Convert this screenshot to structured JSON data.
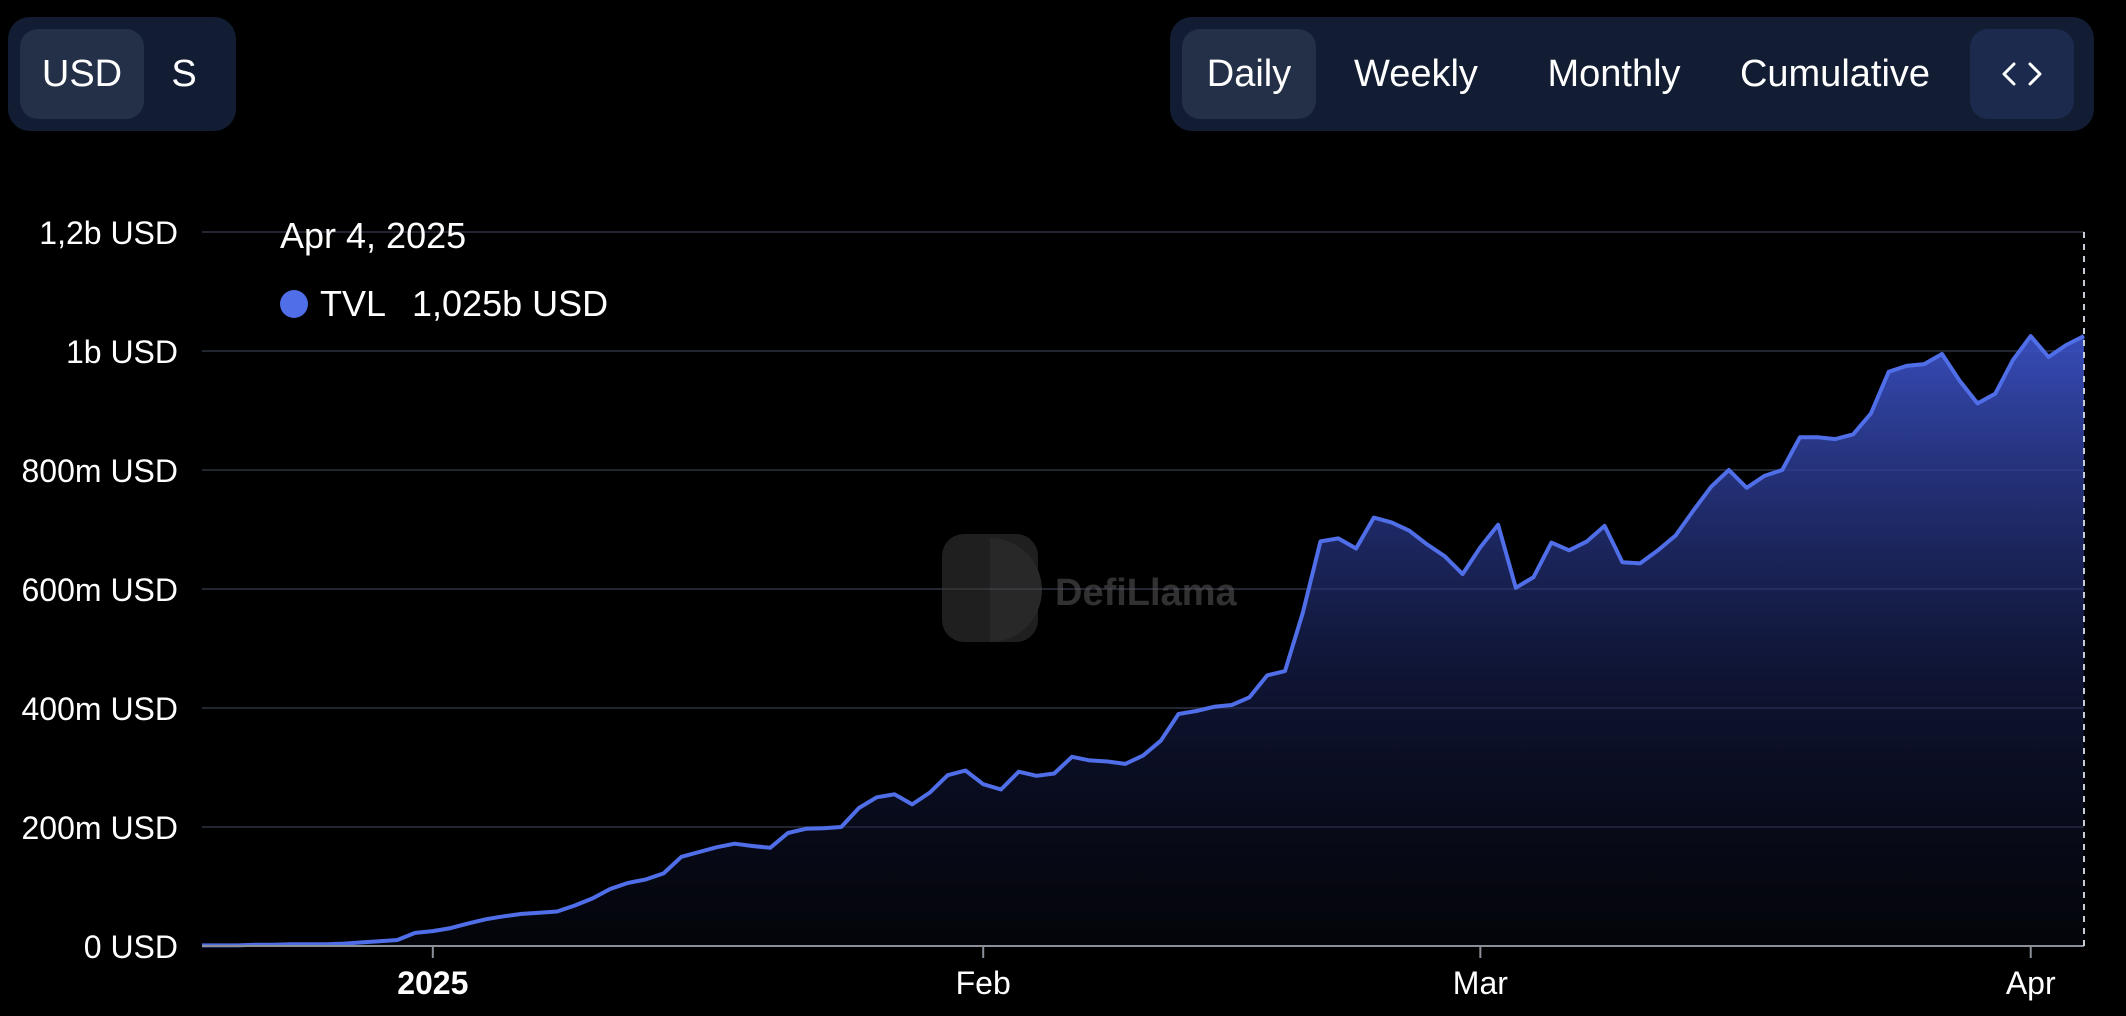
{
  "currency_toggle": {
    "usd_label": "USD",
    "s_label": "S"
  },
  "period_toggle": {
    "daily_label": "Daily",
    "weekly_label": "Weekly",
    "monthly_label": "Monthly",
    "cumulative_label": "Cumulative",
    "embed_icon": "code-embed-icon",
    "active": "Daily"
  },
  "tooltip": {
    "date": "Apr 4, 2025",
    "series_label": "TVL",
    "value": "1,025b USD",
    "marker_color": "#4f6ee8"
  },
  "watermark": "DefiLlama",
  "colors": {
    "line": "#4f6ee8",
    "area_top": "#3c52c8",
    "grid": "#222630",
    "background": "#000000"
  },
  "chart_data": {
    "type": "area",
    "title": "",
    "xlabel": "",
    "ylabel": "",
    "ylim": [
      0,
      1200
    ],
    "y_unit": "million USD",
    "x_start": "2024-12-19",
    "x_end": "2025-04-04",
    "yticks": [
      {
        "value": 0,
        "label": "0 USD"
      },
      {
        "value": 200,
        "label": "200m USD"
      },
      {
        "value": 400,
        "label": "400m USD"
      },
      {
        "value": 600,
        "label": "600m USD"
      },
      {
        "value": 800,
        "label": "800m USD"
      },
      {
        "value": 1000,
        "label": "1b USD"
      },
      {
        "value": 1200,
        "label": "1,2b USD"
      }
    ],
    "xticks": [
      {
        "date": "2025-01-01",
        "label": "2025",
        "bold": true
      },
      {
        "date": "2025-02-01",
        "label": "Feb",
        "bold": false
      },
      {
        "date": "2025-03-01",
        "label": "Mar",
        "bold": false
      },
      {
        "date": "2025-04-01",
        "label": "Apr",
        "bold": false
      }
    ],
    "grid": true,
    "series": [
      {
        "name": "TVL",
        "points": [
          [
            "2024-12-19",
            1
          ],
          [
            "2024-12-20",
            1
          ],
          [
            "2024-12-21",
            1
          ],
          [
            "2024-12-22",
            2
          ],
          [
            "2024-12-23",
            2
          ],
          [
            "2024-12-24",
            3
          ],
          [
            "2024-12-25",
            3
          ],
          [
            "2024-12-26",
            3
          ],
          [
            "2024-12-27",
            4
          ],
          [
            "2024-12-28",
            6
          ],
          [
            "2024-12-29",
            8
          ],
          [
            "2024-12-30",
            10
          ],
          [
            "2024-12-31",
            22
          ],
          [
            "2025-01-01",
            25
          ],
          [
            "2025-01-02",
            30
          ],
          [
            "2025-01-03",
            38
          ],
          [
            "2025-01-04",
            45
          ],
          [
            "2025-01-05",
            50
          ],
          [
            "2025-01-06",
            54
          ],
          [
            "2025-01-07",
            56
          ],
          [
            "2025-01-08",
            58
          ],
          [
            "2025-01-09",
            68
          ],
          [
            "2025-01-10",
            80
          ],
          [
            "2025-01-11",
            96
          ],
          [
            "2025-01-12",
            106
          ],
          [
            "2025-01-13",
            112
          ],
          [
            "2025-01-14",
            122
          ],
          [
            "2025-01-15",
            150
          ],
          [
            "2025-01-16",
            158
          ],
          [
            "2025-01-17",
            166
          ],
          [
            "2025-01-18",
            172
          ],
          [
            "2025-01-19",
            168
          ],
          [
            "2025-01-20",
            165
          ],
          [
            "2025-01-21",
            190
          ],
          [
            "2025-01-22",
            197
          ],
          [
            "2025-01-23",
            198
          ],
          [
            "2025-01-24",
            200
          ],
          [
            "2025-01-25",
            232
          ],
          [
            "2025-01-26",
            250
          ],
          [
            "2025-01-27",
            255
          ],
          [
            "2025-01-28",
            238
          ],
          [
            "2025-01-29",
            258
          ],
          [
            "2025-01-30",
            287
          ],
          [
            "2025-01-31",
            295
          ],
          [
            "2025-02-01",
            272
          ],
          [
            "2025-02-02",
            263
          ],
          [
            "2025-02-03",
            293
          ],
          [
            "2025-02-04",
            286
          ],
          [
            "2025-02-05",
            290
          ],
          [
            "2025-02-06",
            318
          ],
          [
            "2025-02-07",
            312
          ],
          [
            "2025-02-08",
            310
          ],
          [
            "2025-02-09",
            306
          ],
          [
            "2025-02-10",
            320
          ],
          [
            "2025-02-11",
            345
          ],
          [
            "2025-02-12",
            390
          ],
          [
            "2025-02-13",
            395
          ],
          [
            "2025-02-14",
            402
          ],
          [
            "2025-02-15",
            405
          ],
          [
            "2025-02-16",
            418
          ],
          [
            "2025-02-17",
            455
          ],
          [
            "2025-02-18",
            462
          ],
          [
            "2025-02-19",
            560
          ],
          [
            "2025-02-20",
            680
          ],
          [
            "2025-02-21",
            685
          ],
          [
            "2025-02-22",
            668
          ],
          [
            "2025-02-23",
            720
          ],
          [
            "2025-02-24",
            712
          ],
          [
            "2025-02-25",
            698
          ],
          [
            "2025-02-26",
            675
          ],
          [
            "2025-02-27",
            655
          ],
          [
            "2025-02-28",
            625
          ],
          [
            "2025-03-01",
            670
          ],
          [
            "2025-03-02",
            708
          ],
          [
            "2025-03-03",
            602
          ],
          [
            "2025-03-04",
            620
          ],
          [
            "2025-03-05",
            678
          ],
          [
            "2025-03-06",
            665
          ],
          [
            "2025-03-07",
            680
          ],
          [
            "2025-03-08",
            706
          ],
          [
            "2025-03-09",
            645
          ],
          [
            "2025-03-10",
            643
          ],
          [
            "2025-03-11",
            665
          ],
          [
            "2025-03-12",
            690
          ],
          [
            "2025-03-13",
            732
          ],
          [
            "2025-03-14",
            772
          ],
          [
            "2025-03-15",
            800
          ],
          [
            "2025-03-16",
            770
          ],
          [
            "2025-03-17",
            790
          ],
          [
            "2025-03-18",
            800
          ],
          [
            "2025-03-19",
            855
          ],
          [
            "2025-03-20",
            855
          ],
          [
            "2025-03-21",
            852
          ],
          [
            "2025-03-22",
            860
          ],
          [
            "2025-03-23",
            895
          ],
          [
            "2025-03-24",
            965
          ],
          [
            "2025-03-25",
            975
          ],
          [
            "2025-03-26",
            978
          ],
          [
            "2025-03-27",
            995
          ],
          [
            "2025-03-28",
            950
          ],
          [
            "2025-03-29",
            912
          ],
          [
            "2025-03-30",
            928
          ],
          [
            "2025-03-31",
            985
          ],
          [
            "2025-04-01",
            1025
          ],
          [
            "2025-04-02",
            990
          ],
          [
            "2025-04-03",
            1010
          ],
          [
            "2025-04-04",
            1025
          ]
        ]
      }
    ]
  }
}
